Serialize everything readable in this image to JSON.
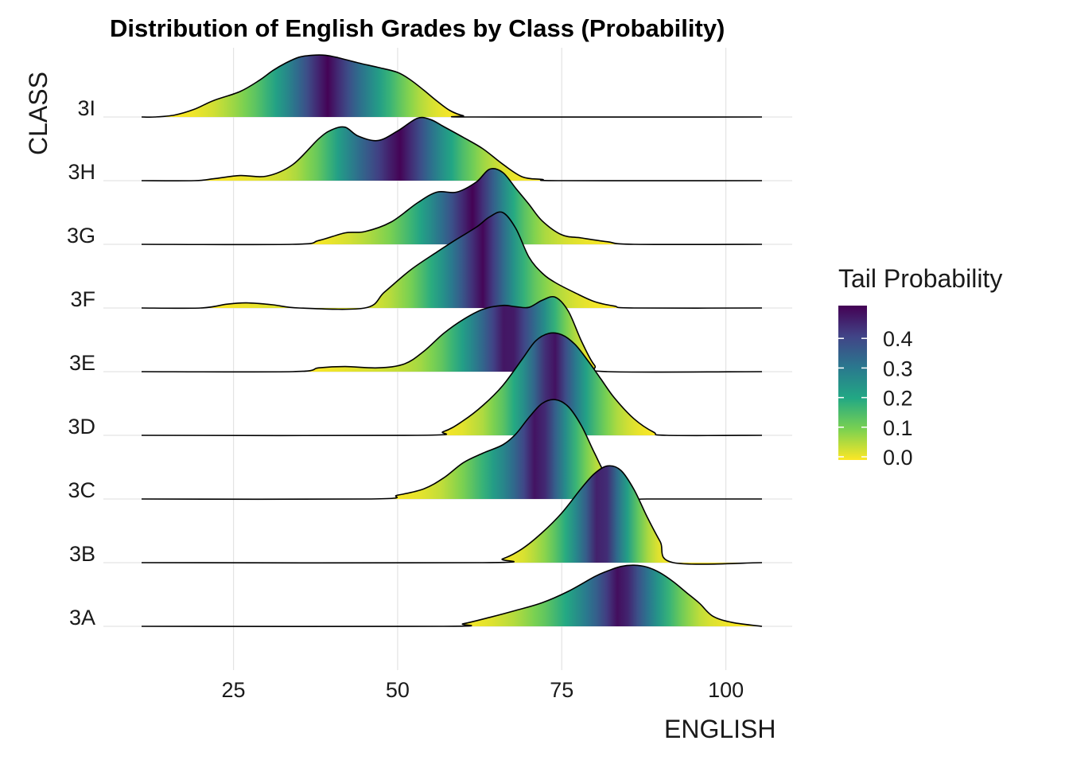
{
  "chart_data": {
    "type": "area",
    "subtype": "ridgeline-density",
    "title": "Distribution of English Grades by Class (Probability)",
    "xlabel": "ENGLISH",
    "ylabel": "CLASS",
    "xlim": [
      11,
      105.5
    ],
    "xticks": [
      25,
      50,
      75,
      100
    ],
    "grid": true,
    "categories": [
      "3A",
      "3B",
      "3C",
      "3D",
      "3E",
      "3F",
      "3G",
      "3H",
      "3I"
    ],
    "legend": {
      "title": "Tail Probability",
      "placement": "right",
      "ticks": [
        "0.0",
        "0.1",
        "0.2",
        "0.3",
        "0.4"
      ],
      "colors": [
        "#fde725",
        "#5ec962",
        "#21918c",
        "#3b528b",
        "#440154"
      ]
    },
    "series": [
      {
        "name": "3A",
        "median": 85,
        "x": [
          11,
          57,
          60,
          64,
          68,
          72,
          76,
          80,
          82,
          84,
          86,
          88,
          90,
          92,
          94,
          96,
          98,
          101,
          105.5
        ],
        "y": [
          0,
          0,
          0.04,
          0.14,
          0.25,
          0.37,
          0.55,
          0.78,
          0.87,
          0.94,
          0.96,
          0.93,
          0.84,
          0.7,
          0.53,
          0.36,
          0.16,
          0.06,
          0
        ]
      },
      {
        "name": "3B",
        "median": 82,
        "x": [
          11,
          63,
          66,
          69,
          72,
          75,
          78,
          80,
          82,
          84,
          86,
          88,
          90,
          92,
          105.5
        ],
        "y": [
          0,
          0,
          0.06,
          0.22,
          0.47,
          0.78,
          1.17,
          1.4,
          1.52,
          1.45,
          1.15,
          0.72,
          0.33,
          0,
          0
        ]
      },
      {
        "name": "3C",
        "median": 73.5,
        "x": [
          11,
          46,
          50,
          54,
          57,
          60,
          63,
          66,
          68,
          70,
          72,
          74,
          76,
          78,
          80,
          82,
          85,
          88,
          105.5
        ],
        "y": [
          0,
          0,
          0.06,
          0.16,
          0.33,
          0.57,
          0.72,
          0.85,
          1.02,
          1.28,
          1.5,
          1.56,
          1.45,
          1.15,
          0.72,
          0.33,
          0,
          0,
          0
        ]
      },
      {
        "name": "3D",
        "median": 74.5,
        "x": [
          11,
          53,
          57,
          60,
          63,
          66,
          69,
          71,
          73,
          75,
          77,
          79,
          81,
          83,
          86,
          89,
          91,
          105.5
        ],
        "y": [
          0,
          0,
          0.06,
          0.23,
          0.47,
          0.78,
          1.2,
          1.48,
          1.6,
          1.58,
          1.43,
          1.17,
          0.88,
          0.59,
          0.26,
          0.05,
          0,
          0
        ]
      },
      {
        "name": "3E",
        "median": 69,
        "x": [
          11,
          34,
          38,
          42,
          47,
          51,
          54,
          57,
          60,
          63,
          66,
          68,
          70,
          72,
          74,
          76,
          78,
          80,
          82,
          105.5
        ],
        "y": [
          0,
          0,
          0.06,
          0.08,
          0.06,
          0.12,
          0.32,
          0.6,
          0.82,
          0.98,
          1.04,
          1.02,
          1.01,
          1.12,
          1.17,
          0.95,
          0.48,
          0.1,
          0,
          0
        ]
      },
      {
        "name": "3F",
        "median": 64.5,
        "x": [
          11,
          20,
          24,
          27,
          31,
          35,
          45,
          48,
          52,
          56,
          59,
          62,
          64,
          66,
          68,
          70,
          72,
          74,
          77,
          80,
          83,
          86,
          105.5
        ],
        "y": [
          0,
          0,
          0.06,
          0.08,
          0.05,
          0,
          0,
          0.25,
          0.6,
          0.88,
          1.08,
          1.27,
          1.43,
          1.5,
          1.25,
          0.8,
          0.55,
          0.4,
          0.24,
          0.1,
          0.03,
          0,
          0
        ]
      },
      {
        "name": "3G",
        "median": 62.5,
        "x": [
          11,
          34,
          38,
          42,
          45,
          49,
          53,
          56,
          59,
          62,
          64,
          66,
          68,
          70,
          72,
          75,
          78,
          82,
          86,
          105.5
        ],
        "y": [
          0,
          0,
          0.06,
          0.18,
          0.2,
          0.35,
          0.65,
          0.82,
          0.82,
          0.98,
          1.18,
          1.13,
          0.88,
          0.63,
          0.37,
          0.15,
          0.1,
          0.04,
          0,
          0
        ]
      },
      {
        "name": "3H",
        "median": 49,
        "x": [
          11,
          19,
          22,
          26,
          30,
          34,
          38,
          40,
          42,
          44,
          47,
          50,
          53,
          55,
          57,
          60,
          63,
          66,
          69,
          72,
          75,
          105.5
        ],
        "y": [
          0,
          0,
          0.03,
          0.08,
          0.07,
          0.25,
          0.66,
          0.8,
          0.84,
          0.7,
          0.63,
          0.78,
          0.98,
          0.96,
          0.85,
          0.68,
          0.5,
          0.26,
          0.06,
          0.02,
          0,
          0
        ]
      },
      {
        "name": "3I",
        "median": 38,
        "x": [
          11,
          13,
          16,
          19,
          22,
          26,
          29,
          31,
          33,
          35,
          37,
          39,
          41,
          44,
          47,
          50,
          52,
          54,
          56,
          58,
          60,
          62,
          105.5
        ],
        "y": [
          0,
          0,
          0.03,
          0.12,
          0.26,
          0.4,
          0.58,
          0.73,
          0.85,
          0.94,
          0.97,
          0.97,
          0.93,
          0.85,
          0.78,
          0.7,
          0.58,
          0.42,
          0.25,
          0.1,
          0.02,
          0,
          0
        ]
      }
    ]
  }
}
